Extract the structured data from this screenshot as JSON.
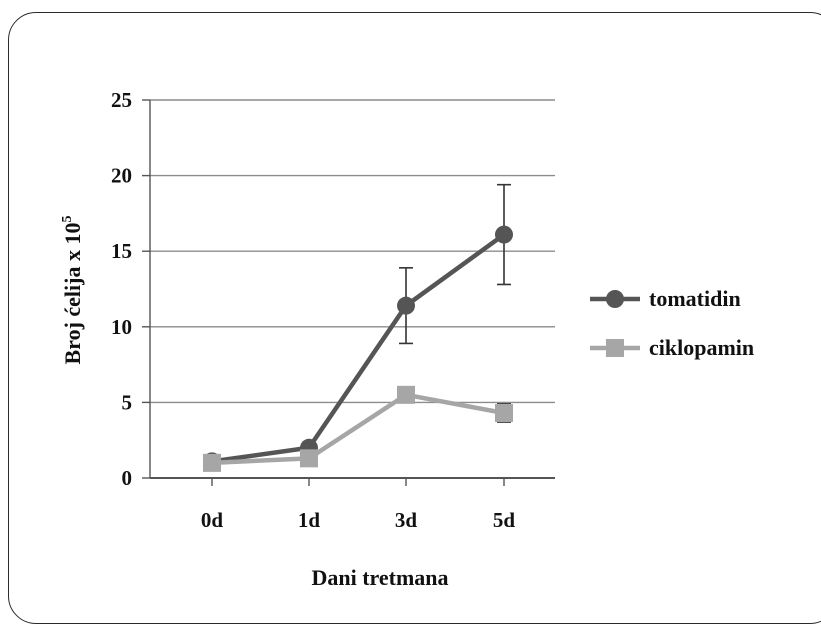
{
  "chart_data": {
    "type": "line",
    "categories": [
      "0d",
      "1d",
      "3d",
      "5d"
    ],
    "xlabel": "Dani tretmana",
    "ylabel_main": "Broj ćelija x 10",
    "ylabel_exp": "5",
    "ylim": [
      0,
      25
    ],
    "yticks": [
      "0",
      "5",
      "10",
      "15",
      "20",
      "25"
    ],
    "grid": true,
    "legend_position": "right",
    "series": [
      {
        "name": "tomatidin",
        "color": "#555555",
        "marker": "circle",
        "values": [
          1.1,
          2.0,
          11.4,
          16.1
        ],
        "err": [
          0,
          0,
          2.5,
          3.3
        ]
      },
      {
        "name": "ciklopamin",
        "color": "#a6a6a6",
        "marker": "square",
        "values": [
          1.0,
          1.3,
          5.5,
          4.3
        ],
        "err": [
          0,
          0,
          0.5,
          0.6
        ]
      }
    ]
  }
}
